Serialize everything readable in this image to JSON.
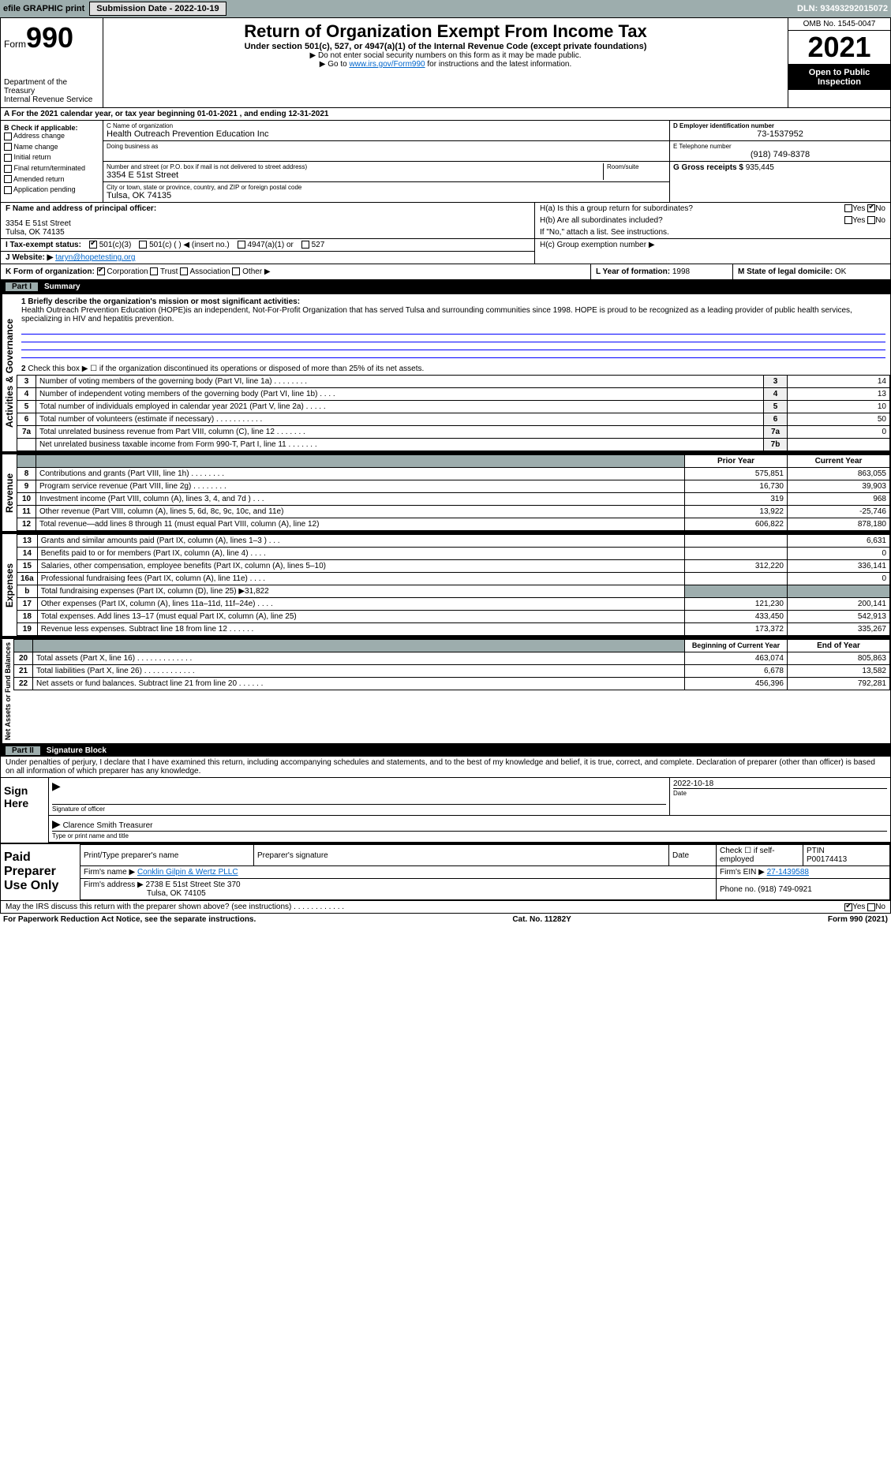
{
  "topbar": {
    "efile": "efile GRAPHIC print",
    "submission_label": "Submission Date - 2022-10-19",
    "dln": "DLN: 93493292015072"
  },
  "header": {
    "form_word": "Form",
    "form_num": "990",
    "dept": "Department of the Treasury\nInternal Revenue Service",
    "title": "Return of Organization Exempt From Income Tax",
    "sub": "Under section 501(c), 527, or 4947(a)(1) of the Internal Revenue Code (except private foundations)",
    "note1": "▶ Do not enter social security numbers on this form as it may be made public.",
    "note2_pre": "▶ Go to ",
    "note2_link": "www.irs.gov/Form990",
    "note2_post": " for instructions and the latest information.",
    "omb": "OMB No. 1545-0047",
    "year": "2021",
    "inspect": "Open to Public Inspection"
  },
  "period": "For the 2021 calendar year, or tax year beginning 01-01-2021    , and ending 12-31-2021",
  "boxB": {
    "hdr": "B Check if applicable:",
    "items": [
      "Address change",
      "Name change",
      "Initial return",
      "Final return/terminated",
      "Amended return",
      "Application pending"
    ]
  },
  "boxC": {
    "label": "C Name of organization",
    "name": "Health Outreach Prevention Education Inc",
    "dba_label": "Doing business as",
    "street_label": "Number and street (or P.O. box if mail is not delivered to street address)",
    "room_label": "Room/suite",
    "street": "3354 E 51st Street",
    "city_label": "City or town, state or province, country, and ZIP or foreign postal code",
    "city": "Tulsa, OK  74135"
  },
  "boxD": {
    "label": "D Employer identification number",
    "val": "73-1537952"
  },
  "boxE": {
    "label": "E Telephone number",
    "val": "(918) 749-8378"
  },
  "boxG": {
    "label": "G Gross receipts $",
    "val": "935,445"
  },
  "boxF": {
    "label": "F Name and address of principal officer:",
    "addr1": "3354 E 51st Street",
    "addr2": "Tulsa, OK  74135"
  },
  "boxH": {
    "a": "H(a)  Is this a group return for subordinates?",
    "a_yes": "Yes",
    "a_no": "No",
    "b": "H(b)  Are all subordinates included?",
    "b_note": "If \"No,\" attach a list. See instructions.",
    "c": "H(c)  Group exemption number ▶"
  },
  "boxI": {
    "label": "I  Tax-exempt status:",
    "opts": [
      "501(c)(3)",
      "501(c) (   ) ◀ (insert no.)",
      "4947(a)(1) or",
      "527"
    ]
  },
  "boxJ": {
    "label": "J  Website: ▶",
    "val": "taryn@hopetesting.org"
  },
  "boxK": {
    "label": "K Form of organization:",
    "opts": [
      "Corporation",
      "Trust",
      "Association",
      "Other ▶"
    ]
  },
  "boxL": {
    "label": "L Year of formation:",
    "val": "1998"
  },
  "boxM": {
    "label": "M State of legal domicile:",
    "val": "OK"
  },
  "part1": {
    "num": "Part I",
    "title": "Summary"
  },
  "mission": {
    "line": "1  Briefly describe the organization's mission or most significant activities:",
    "text": "Health Outreach Prevention Education (HOPE)is an independent, Not-For-Profit Organization that has served Tulsa and surrounding communities since 1998. HOPE is proud to be recognized as a leading provider of public health services, specializing in HIV and hepatitis prevention."
  },
  "gov": {
    "tab": "Activities & Governance",
    "l2": "Check this box ▶ ☐  if the organization discontinued its operations or disposed of more than 25% of its net assets.",
    "rows": [
      {
        "n": "3",
        "t": "Number of voting members of the governing body (Part VI, line 1a)  .    .    .    .    .    .    .    .",
        "b": "3",
        "v": "14"
      },
      {
        "n": "4",
        "t": "Number of independent voting members of the governing body (Part VI, line 1b)    .    .    .    .",
        "b": "4",
        "v": "13"
      },
      {
        "n": "5",
        "t": "Total number of individuals employed in calendar year 2021 (Part V, line 2a)   .    .    .    .    .",
        "b": "5",
        "v": "10"
      },
      {
        "n": "6",
        "t": "Total number of volunteers (estimate if necessary)    .    .    .    .    .    .    .    .    .    .    .",
        "b": "6",
        "v": "50"
      },
      {
        "n": "7a",
        "t": "Total unrelated business revenue from Part VIII, column (C), line 12   .    .    .    .    .    .    .",
        "b": "7a",
        "v": "0"
      },
      {
        "n": "",
        "t": "Net unrelated business taxable income from Form 990-T, Part I, line 11   .    .    .    .    .    .    .",
        "b": "7b",
        "v": ""
      }
    ]
  },
  "rev": {
    "tab": "Revenue",
    "hdr_prior": "Prior Year",
    "hdr_curr": "Current Year",
    "rows": [
      {
        "n": "8",
        "t": "Contributions and grants (Part VIII, line 1h)    .    .    .    .    .    .    .    .",
        "p": "575,851",
        "c": "863,055"
      },
      {
        "n": "9",
        "t": "Program service revenue (Part VIII, line 2g)    .    .    .    .    .    .    .    .",
        "p": "16,730",
        "c": "39,903"
      },
      {
        "n": "10",
        "t": "Investment income (Part VIII, column (A), lines 3, 4, and 7d )   .    .    .",
        "p": "319",
        "c": "968"
      },
      {
        "n": "11",
        "t": "Other revenue (Part VIII, column (A), lines 5, 6d, 8c, 9c, 10c, and 11e)",
        "p": "13,922",
        "c": "-25,746"
      },
      {
        "n": "12",
        "t": "Total revenue—add lines 8 through 11 (must equal Part VIII, column (A), line 12)",
        "p": "606,822",
        "c": "878,180"
      }
    ]
  },
  "exp": {
    "tab": "Expenses",
    "rows": [
      {
        "n": "13",
        "t": "Grants and similar amounts paid (Part IX, column (A), lines 1–3 )   .    .    .",
        "p": "",
        "c": "6,631"
      },
      {
        "n": "14",
        "t": "Benefits paid to or for members (Part IX, column (A), line 4)   .    .    .    .",
        "p": "",
        "c": "0"
      },
      {
        "n": "15",
        "t": "Salaries, other compensation, employee benefits (Part IX, column (A), lines 5–10)",
        "p": "312,220",
        "c": "336,141"
      },
      {
        "n": "16a",
        "t": "Professional fundraising fees (Part IX, column (A), line 11e)   .    .    .    .",
        "p": "",
        "c": "0"
      },
      {
        "n": "b",
        "t": "Total fundraising expenses (Part IX, column (D), line 25) ▶31,822",
        "p": "grey",
        "c": "grey"
      },
      {
        "n": "17",
        "t": "Other expenses (Part IX, column (A), lines 11a–11d, 11f–24e)   .    .    .    .",
        "p": "121,230",
        "c": "200,141"
      },
      {
        "n": "18",
        "t": "Total expenses. Add lines 13–17 (must equal Part IX, column (A), line 25)",
        "p": "433,450",
        "c": "542,913"
      },
      {
        "n": "19",
        "t": "Revenue less expenses. Subtract line 18 from line 12   .    .    .    .    .    .",
        "p": "173,372",
        "c": "335,267"
      }
    ]
  },
  "net": {
    "tab": "Net Assets or Fund Balances",
    "hdr_beg": "Beginning of Current Year",
    "hdr_end": "End of Year",
    "rows": [
      {
        "n": "20",
        "t": "Total assets (Part X, line 16)   .    .    .    .    .    .    .    .    .    .    .    .    .",
        "p": "463,074",
        "c": "805,863"
      },
      {
        "n": "21",
        "t": "Total liabilities (Part X, line 26)   .    .    .    .    .    .    .    .    .    .    .    .",
        "p": "6,678",
        "c": "13,582"
      },
      {
        "n": "22",
        "t": "Net assets or fund balances. Subtract line 21 from line 20   .    .    .    .    .    .",
        "p": "456,396",
        "c": "792,281"
      }
    ]
  },
  "part2": {
    "num": "Part II",
    "title": "Signature Block"
  },
  "sig": {
    "decl": "Under penalties of perjury, I declare that I have examined this return, including accompanying schedules and statements, and to the best of my knowledge and belief, it is true, correct, and complete. Declaration of preparer (other than officer) is based on all information of which preparer has any knowledge.",
    "sign_here": "Sign Here",
    "sig_officer": "Signature of officer",
    "date": "2022-10-18",
    "date_label": "Date",
    "name": "Clarence Smith Treasurer",
    "name_label": "Type or print name and title"
  },
  "prep": {
    "label": "Paid Preparer Use Only",
    "h1": "Print/Type preparer's name",
    "h2": "Preparer's signature",
    "h3": "Date",
    "h4": "Check ☐ if self-employed",
    "h5": "PTIN",
    "ptin": "P00174413",
    "firm_label": "Firm's name    ▶",
    "firm": "Conklin Gilpin & Wertz PLLC",
    "ein_label": "Firm's EIN ▶",
    "ein": "27-1439588",
    "addr_label": "Firm's address ▶",
    "addr": "2738 E 51st Street Ste 370",
    "addr2": "Tulsa, OK  74105",
    "phone_label": "Phone no.",
    "phone": "(918) 749-0921"
  },
  "discuss": {
    "q": "May the IRS discuss this return with the preparer shown above? (see instructions)    .    .    .    .    .    .    .    .    .    .    .    .",
    "yes": "Yes",
    "no": "No"
  },
  "footer": {
    "left": "For Paperwork Reduction Act Notice, see the separate instructions.",
    "mid": "Cat. No. 11282Y",
    "right": "Form 990 (2021)"
  }
}
